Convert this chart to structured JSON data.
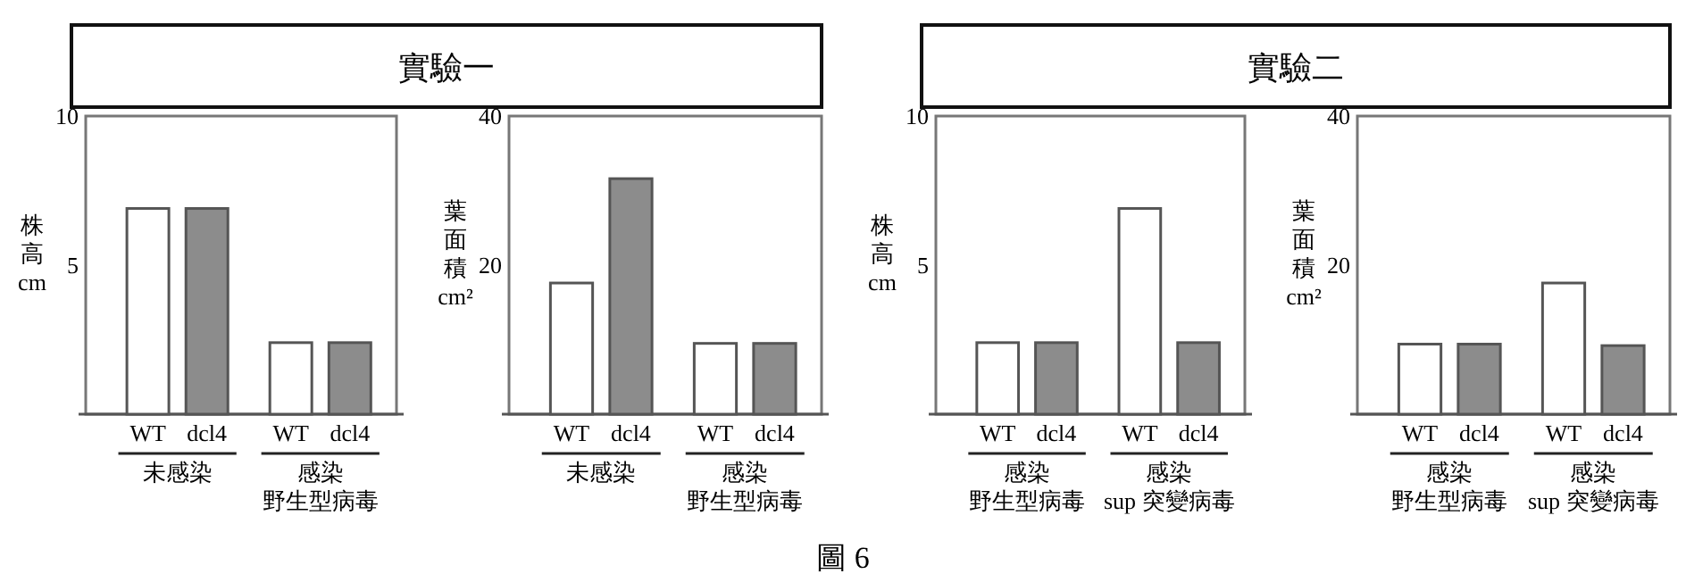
{
  "chart_data": [
    {
      "type": "bar",
      "title": "實驗一",
      "ylabel": "株高cm",
      "categories": [
        "WT",
        "dcl4",
        "WT",
        "dcl4"
      ],
      "values": [
        6.9,
        6.9,
        2.4,
        2.4
      ],
      "colors": [
        "#ffffff",
        "#8c8c8c",
        "#ffffff",
        "#8c8c8c"
      ],
      "ylim": [
        0,
        10
      ],
      "yticks": [
        5,
        10
      ],
      "grid": false,
      "annotations": [
        "未感染",
        "感染野生型病毒"
      ]
    },
    {
      "type": "bar",
      "ylabel": "葉面積cm²",
      "categories": [
        "WT",
        "dcl4",
        "WT",
        "dcl4"
      ],
      "values": [
        17.6,
        31.6,
        9.5,
        9.5
      ],
      "colors": [
        "#ffffff",
        "#8c8c8c",
        "#ffffff",
        "#8c8c8c"
      ],
      "ylim": [
        0,
        40
      ],
      "yticks": [
        20,
        40
      ],
      "grid": false,
      "annotations": [
        "未感染",
        "感染野生型病毒"
      ]
    },
    {
      "type": "bar",
      "title": "實驗二",
      "ylabel": "株高cm",
      "categories": [
        "WT",
        "dcl4",
        "WT",
        "dcl4"
      ],
      "values": [
        2.4,
        2.4,
        6.9,
        2.4
      ],
      "colors": [
        "#ffffff",
        "#8c8c8c",
        "#ffffff",
        "#8c8c8c"
      ],
      "ylim": [
        0,
        10
      ],
      "yticks": [
        5,
        10
      ],
      "grid": false,
      "annotations": [
        "感染野生型病毒",
        "感染sup 突變病毒"
      ]
    },
    {
      "type": "bar",
      "ylabel": "葉面積cm²",
      "categories": [
        "WT",
        "dcl4",
        "WT",
        "dcl4"
      ],
      "values": [
        9.4,
        9.4,
        17.6,
        9.2
      ],
      "colors": [
        "#ffffff",
        "#8c8c8c",
        "#ffffff",
        "#8c8c8c"
      ],
      "ylim": [
        0,
        40
      ],
      "yticks": [
        20,
        40
      ],
      "grid": false,
      "annotations": [
        "感染野生型病毒",
        "感染sup 突變病毒",
        "圖 6"
      ]
    }
  ]
}
